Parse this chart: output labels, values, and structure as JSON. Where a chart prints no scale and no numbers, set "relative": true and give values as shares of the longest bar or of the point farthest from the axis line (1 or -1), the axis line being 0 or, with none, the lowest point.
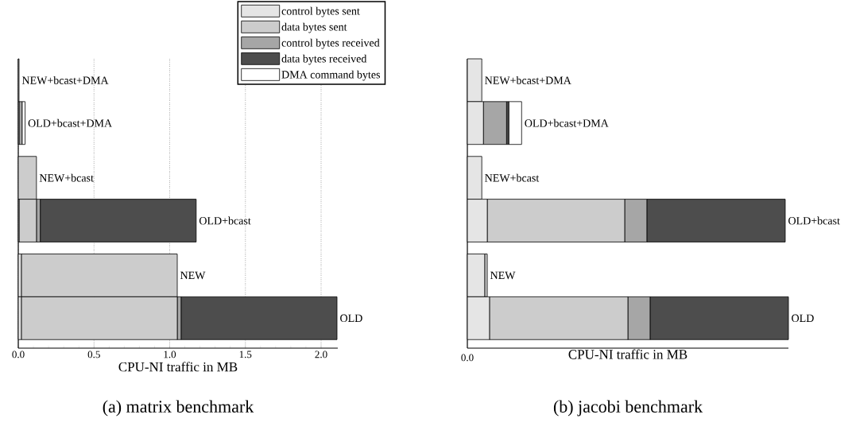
{
  "chart_data": [
    {
      "type": "bar",
      "orientation": "horizontal",
      "stacked": true,
      "title": "(a) matrix benchmark",
      "xlabel": "CPU-NI traffic in MB",
      "categories": [
        "NEW+bcast+DMA",
        "OLD+bcast+DMA",
        "NEW+bcast",
        "OLD+bcast",
        "NEW",
        "OLD"
      ],
      "xlim": [
        0,
        2.11
      ],
      "xticks": [
        {
          "value": 0,
          "label": "0.0"
        },
        0.5,
        {
          "value": 1,
          "label": "1.0"
        },
        1.5,
        {
          "value": 2,
          "label": "2.0"
        }
      ],
      "grid": "x",
      "legend": "top right",
      "series": [
        {
          "name": "control bytes sent",
          "color": "#e5e5e5",
          "values": [
            0.005,
            0.005,
            null,
            0.005,
            0.02,
            0.02
          ]
        },
        {
          "name": "data bytes sent",
          "color": "#cccccc",
          "values": [
            0,
            0,
            0.12,
            0.115,
            1.03,
            1.03
          ]
        },
        {
          "name": "control bytes received",
          "color": "#a6a6a6",
          "values": [
            0,
            0.02,
            0,
            0.025,
            0,
            0.025
          ]
        },
        {
          "name": "data bytes received",
          "color": "#4d4d4d",
          "values": [
            0,
            0,
            0,
            1.03,
            0,
            1.03
          ]
        },
        {
          "name": "DMA command bytes",
          "color": "#ffffff",
          "values": [
            0,
            0.02,
            0,
            0,
            0,
            0
          ]
        }
      ]
    },
    {
      "type": "bar",
      "orientation": "horizontal",
      "stacked": true,
      "relative": true,
      "title": "(b) jacobi benchmark",
      "xlabel": "CPU-NI traffic in MB",
      "categories": [
        "NEW+bcast+DMA",
        "OLD+bcast+DMA",
        "NEW+bcast",
        "OLD+bcast",
        "NEW",
        "OLD"
      ],
      "annotations": [
        "0.0"
      ],
      "series": [
        {
          "color": "#e5e5e5",
          "values": [
            0.045,
            0.05,
            0.045,
            0.062,
            0.054,
            0.069
          ]
        },
        {
          "color": "#cccccc",
          "values": [
            null,
            0,
            null,
            0.428,
            0.008,
            0.431
          ]
        },
        {
          "color": "#a6a6a6",
          "values": [
            0,
            0.072,
            0,
            0.069,
            0,
            0.069
          ]
        },
        {
          "color": "#4d4d4d",
          "values": [
            0,
            0.007,
            0,
            0.431,
            0,
            0.431
          ]
        },
        {
          "color": "#ffffff",
          "values": [
            0,
            0.04,
            0,
            0,
            0,
            0
          ]
        }
      ]
    }
  ]
}
